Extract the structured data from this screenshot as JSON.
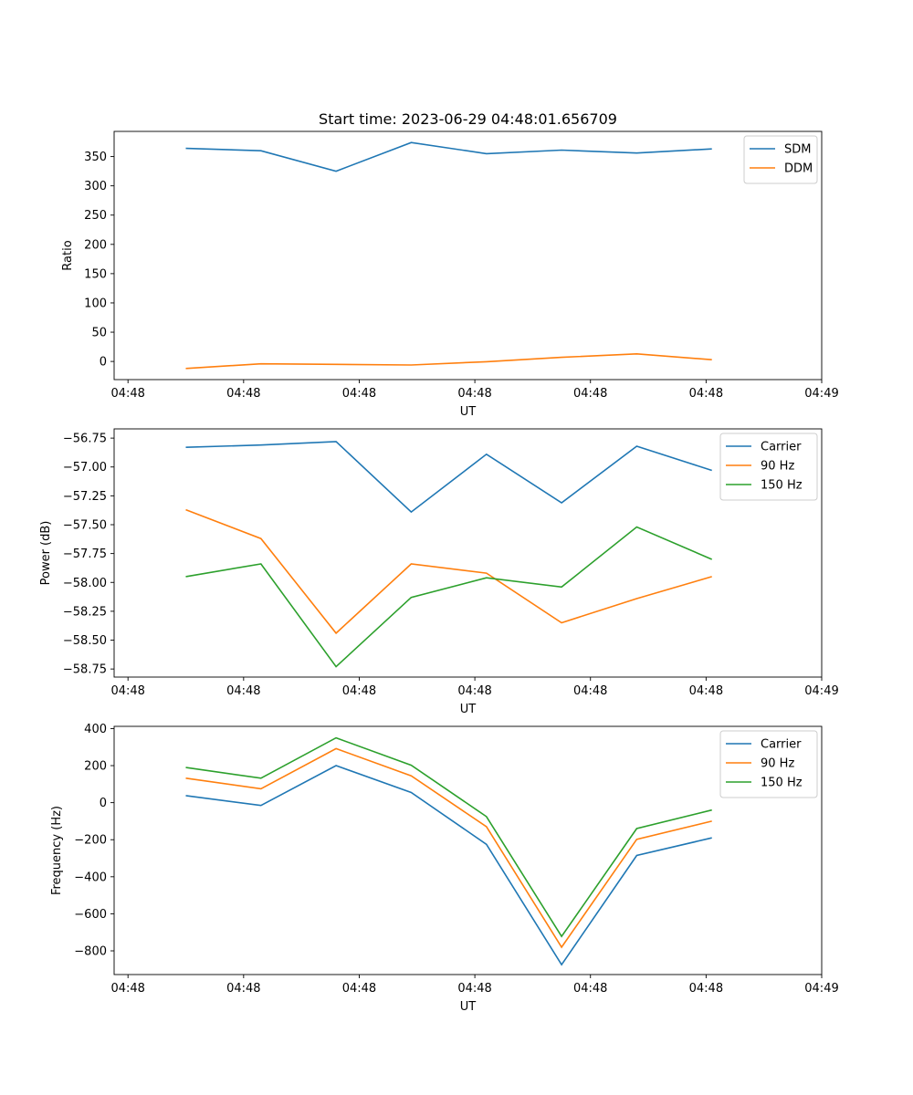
{
  "figure": {
    "title": "Start time: 2023-06-29 04:48:01.656709"
  },
  "colors": {
    "series1": "#1f77b4",
    "series2": "#ff7f0e",
    "series3": "#2ca02c"
  },
  "chart_data": [
    {
      "type": "line",
      "title": "Start time: 2023-06-29 04:48:01.656709",
      "xlabel": "UT",
      "ylabel": "Ratio",
      "x_tick_labels": [
        "04:48",
        "04:48",
        "04:48",
        "04:48",
        "04:48",
        "04:48",
        "04:49"
      ],
      "x": [
        0.5,
        1.15,
        1.8,
        2.45,
        3.1,
        3.75,
        4.4,
        5.05
      ],
      "xlim": [
        -0.12,
        6.0
      ],
      "ylim": [
        -31,
        393
      ],
      "y_ticks": [
        0,
        50,
        100,
        150,
        200,
        250,
        300,
        350
      ],
      "y_tick_labels": [
        "0",
        "50",
        "100",
        "150",
        "200",
        "250",
        "300",
        "350"
      ],
      "legend_position": "top-right",
      "series": [
        {
          "name": "SDM",
          "color": "#1f77b4",
          "values": [
            364,
            360,
            325,
            374,
            355,
            361,
            356,
            363
          ]
        },
        {
          "name": "DDM",
          "color": "#ff7f0e",
          "values": [
            -12,
            -4,
            -5,
            -6,
            -0.5,
            7,
            13,
            3
          ]
        }
      ]
    },
    {
      "type": "line",
      "title": "",
      "xlabel": "UT",
      "ylabel": "Power (dB)",
      "x_tick_labels": [
        "04:48",
        "04:48",
        "04:48",
        "04:48",
        "04:48",
        "04:48",
        "04:49"
      ],
      "x": [
        0.5,
        1.15,
        1.8,
        2.45,
        3.1,
        3.75,
        4.4,
        5.05
      ],
      "xlim": [
        -0.12,
        6.0
      ],
      "ylim": [
        -58.82,
        -56.67
      ],
      "y_ticks": [
        -58.75,
        -58.5,
        -58.25,
        -58.0,
        -57.75,
        -57.5,
        -57.25,
        -57.0,
        -56.75
      ],
      "y_tick_labels": [
        "−58.75",
        "−58.50",
        "−58.25",
        "−58.00",
        "−57.75",
        "−57.50",
        "−57.25",
        "−57.00",
        "−56.75"
      ],
      "legend_position": "top-right",
      "series": [
        {
          "name": "Carrier",
          "color": "#1f77b4",
          "values": [
            -56.83,
            -56.81,
            -56.78,
            -57.39,
            -56.89,
            -57.31,
            -56.82,
            -57.03
          ]
        },
        {
          "name": "90 Hz",
          "color": "#ff7f0e",
          "values": [
            -57.37,
            -57.62,
            -58.44,
            -57.84,
            -57.92,
            -58.35,
            -58.14,
            -57.95
          ]
        },
        {
          "name": "150 Hz",
          "color": "#2ca02c",
          "values": [
            -57.95,
            -57.84,
            -58.73,
            -58.13,
            -57.96,
            -58.04,
            -57.52,
            -57.8
          ]
        }
      ]
    },
    {
      "type": "line",
      "title": "",
      "xlabel": "UT",
      "ylabel": "Frequency (Hz)",
      "x_tick_labels": [
        "04:48",
        "04:48",
        "04:48",
        "04:48",
        "04:48",
        "04:48",
        "04:49"
      ],
      "x": [
        0.5,
        1.15,
        1.8,
        2.45,
        3.1,
        3.75,
        4.4,
        5.05
      ],
      "xlim": [
        -0.12,
        6.0
      ],
      "ylim": [
        -928,
        412
      ],
      "y_ticks": [
        -800,
        -600,
        -400,
        -200,
        0,
        200,
        400
      ],
      "y_tick_labels": [
        "−800",
        "−600",
        "−400",
        "−200",
        "0",
        "200",
        "400"
      ],
      "legend_position": "top-right",
      "series": [
        {
          "name": "Carrier",
          "color": "#1f77b4",
          "values": [
            38,
            -15,
            200,
            55,
            -225,
            -875,
            -285,
            -190
          ]
        },
        {
          "name": "90 Hz",
          "color": "#ff7f0e",
          "values": [
            132,
            75,
            292,
            145,
            -130,
            -780,
            -198,
            -100
          ]
        },
        {
          "name": "150 Hz",
          "color": "#2ca02c",
          "values": [
            190,
            132,
            350,
            202,
            -75,
            -722,
            -140,
            -40
          ]
        }
      ]
    }
  ]
}
